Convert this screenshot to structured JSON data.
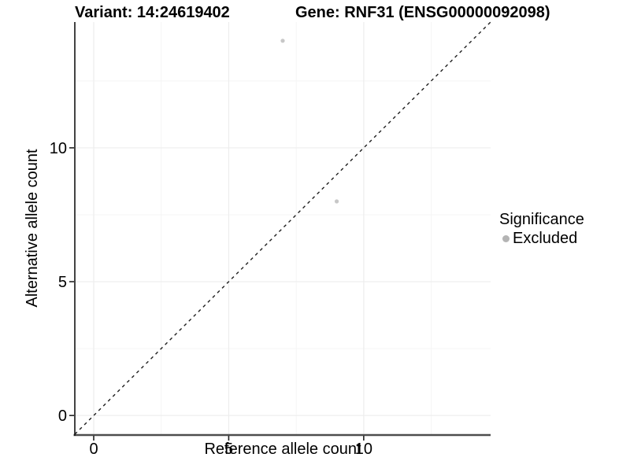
{
  "chart_data": {
    "type": "scatter",
    "title_left": "Variant: 14:24619402",
    "title_right": "Gene: RNF31 (ENSG00000092098)",
    "xlabel": "Reference allele count",
    "ylabel": "Alternative allele count",
    "xlim": [
      -0.7,
      14.7
    ],
    "ylim": [
      -0.7,
      14.7
    ],
    "xticks": [
      0,
      5,
      10
    ],
    "yticks": [
      0,
      5,
      10
    ],
    "minor_xticks": [
      2.5,
      7.5,
      12.5
    ],
    "minor_yticks": [
      2.5,
      7.5,
      12.5
    ],
    "grid": "major and minor, very light, on white background",
    "points": [
      {
        "x": 7,
        "y": 14,
        "significance": "Excluded"
      },
      {
        "x": 9,
        "y": 8,
        "significance": "Excluded"
      }
    ],
    "identity_line": {
      "slope": 1,
      "intercept": 0,
      "style": "dashed",
      "color": "#1f1f1f"
    },
    "legend": {
      "title": "Significance",
      "position": "right",
      "items": [
        {
          "label": "Excluded",
          "color": "#b4b4b4"
        }
      ]
    },
    "colors": {
      "background": "#ffffff",
      "point": "#c7c7c7",
      "axis_line_bottom": "#4d4d4d",
      "axis_line_left": "#141414",
      "tick": "#222222",
      "grid_major": "#ededed",
      "grid_minor": "#f5f5f5",
      "text": "#000000"
    }
  }
}
